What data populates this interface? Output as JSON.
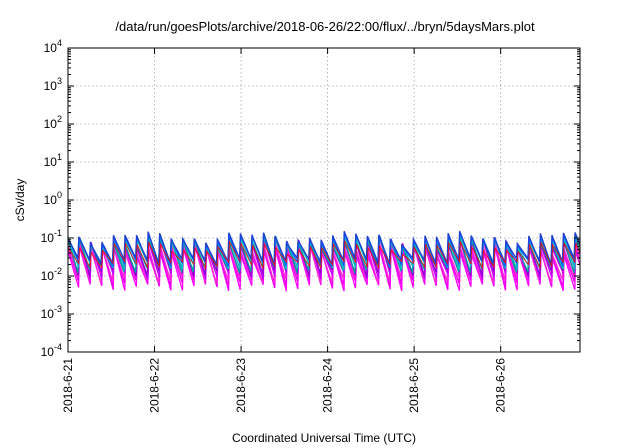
{
  "chart_data": {
    "type": "line",
    "title": "/data/run/goesPlots/archive/2018-06-26/22:00/flux/../bryn/5daysMars.plot",
    "xlabel": "Coordinated Universal Time (UTC)",
    "ylabel": "cSv/day",
    "xlim": [
      "2018-06-21T00:00",
      "2018-06-26T22:00"
    ],
    "ylim": [
      0.0001,
      10000
    ],
    "yscale": "log",
    "grid": true,
    "legend": "none",
    "x_ticks": [
      {
        "label": "2018-6-21",
        "date": "2018-06-21T00:00"
      },
      {
        "label": "2018-6-22",
        "date": "2018-06-22T00:00"
      },
      {
        "label": "2018-6-23",
        "date": "2018-06-23T00:00"
      },
      {
        "label": "2018-6-24",
        "date": "2018-06-24T00:00"
      },
      {
        "label": "2018-6-25",
        "date": "2018-06-25T00:00"
      },
      {
        "label": "2018-6-26",
        "date": "2018-06-26T00:00"
      }
    ],
    "y_ticks": [
      {
        "base": "10",
        "exp": "4",
        "value": 10000
      },
      {
        "base": "10",
        "exp": "3",
        "value": 1000
      },
      {
        "base": "10",
        "exp": "2",
        "value": 100
      },
      {
        "base": "10",
        "exp": "1",
        "value": 10
      },
      {
        "base": "10",
        "exp": "0",
        "value": 1
      },
      {
        "base": "10",
        "exp": "-1",
        "value": 0.1
      },
      {
        "base": "10",
        "exp": "-2",
        "value": 0.01
      },
      {
        "base": "10",
        "exp": "-3",
        "value": 0.001
      },
      {
        "base": "10",
        "exp": "-4",
        "value": 0.0001
      }
    ],
    "sawtooth_period_hours": 3.2,
    "series": [
      {
        "color": "#ff00ff",
        "peak": 0.045,
        "trough": 0.005
      },
      {
        "color": "#ee00ee",
        "peak": 0.055,
        "trough": 0.0065
      },
      {
        "color": "#ff2ad4",
        "peak": 0.065,
        "trough": 0.008
      },
      {
        "color": "#c000ff",
        "peak": 0.075,
        "trough": 0.01
      },
      {
        "color": "#9400d3",
        "peak": 0.08,
        "trough": 0.012
      },
      {
        "color": "#00a0a0",
        "peak": 0.085,
        "trough": 0.015
      },
      {
        "color": "#00c0c0",
        "peak": 0.09,
        "trough": 0.018
      },
      {
        "color": "#0060ff",
        "peak": 0.1,
        "trough": 0.022
      },
      {
        "color": "#2040d0",
        "peak": 0.11,
        "trough": 0.025
      },
      {
        "color": "#ff0000",
        "peak": 0.06,
        "trough": 0.02
      }
    ]
  }
}
